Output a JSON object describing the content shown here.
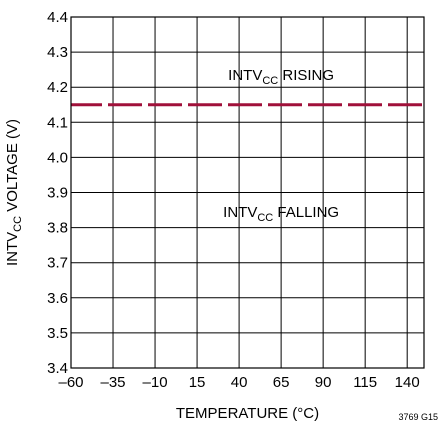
{
  "chart_data": {
    "type": "line",
    "xlabel": "TEMPERATURE (°C)",
    "ylabel": {
      "prefix": "INTV",
      "subscript": "CC",
      "suffix": " VOLTAGE (V)"
    },
    "xlim": [
      -60,
      150
    ],
    "ylim": [
      3.4,
      4.4
    ],
    "x_ticks": [
      -60,
      -35,
      -10,
      15,
      40,
      65,
      90,
      115,
      140
    ],
    "x_tick_labels": [
      "–60",
      "–35",
      "–10",
      "15",
      "40",
      "65",
      "90",
      "115",
      "140"
    ],
    "y_ticks": [
      3.4,
      3.5,
      3.6,
      3.7,
      3.8,
      3.9,
      4.0,
      4.1,
      4.2,
      4.3,
      4.4
    ],
    "y_tick_labels": [
      "3.4",
      "3.5",
      "3.6",
      "3.7",
      "3.8",
      "3.9",
      "4.0",
      "4.1",
      "4.2",
      "4.3",
      "4.4"
    ],
    "grid": true,
    "series": [
      {
        "name": "",
        "style": "dashed",
        "x": [
          -60,
          -35,
          -10,
          15,
          40,
          65,
          90,
          115,
          140,
          150
        ],
        "y": [
          4.15,
          4.15,
          4.15,
          4.15,
          4.15,
          4.15,
          4.15,
          4.15,
          4.15,
          4.15
        ]
      }
    ],
    "annotations": [
      {
        "prefix": "INTV",
        "subscript": "CC",
        "suffix": " RISING",
        "x": 65,
        "y": 4.22
      },
      {
        "prefix": "INTV",
        "subscript": "CC",
        "suffix": " FALLING",
        "x": 65,
        "y": 3.83
      }
    ],
    "figure_code": "3769 G15",
    "line_color": "#a0103a"
  }
}
